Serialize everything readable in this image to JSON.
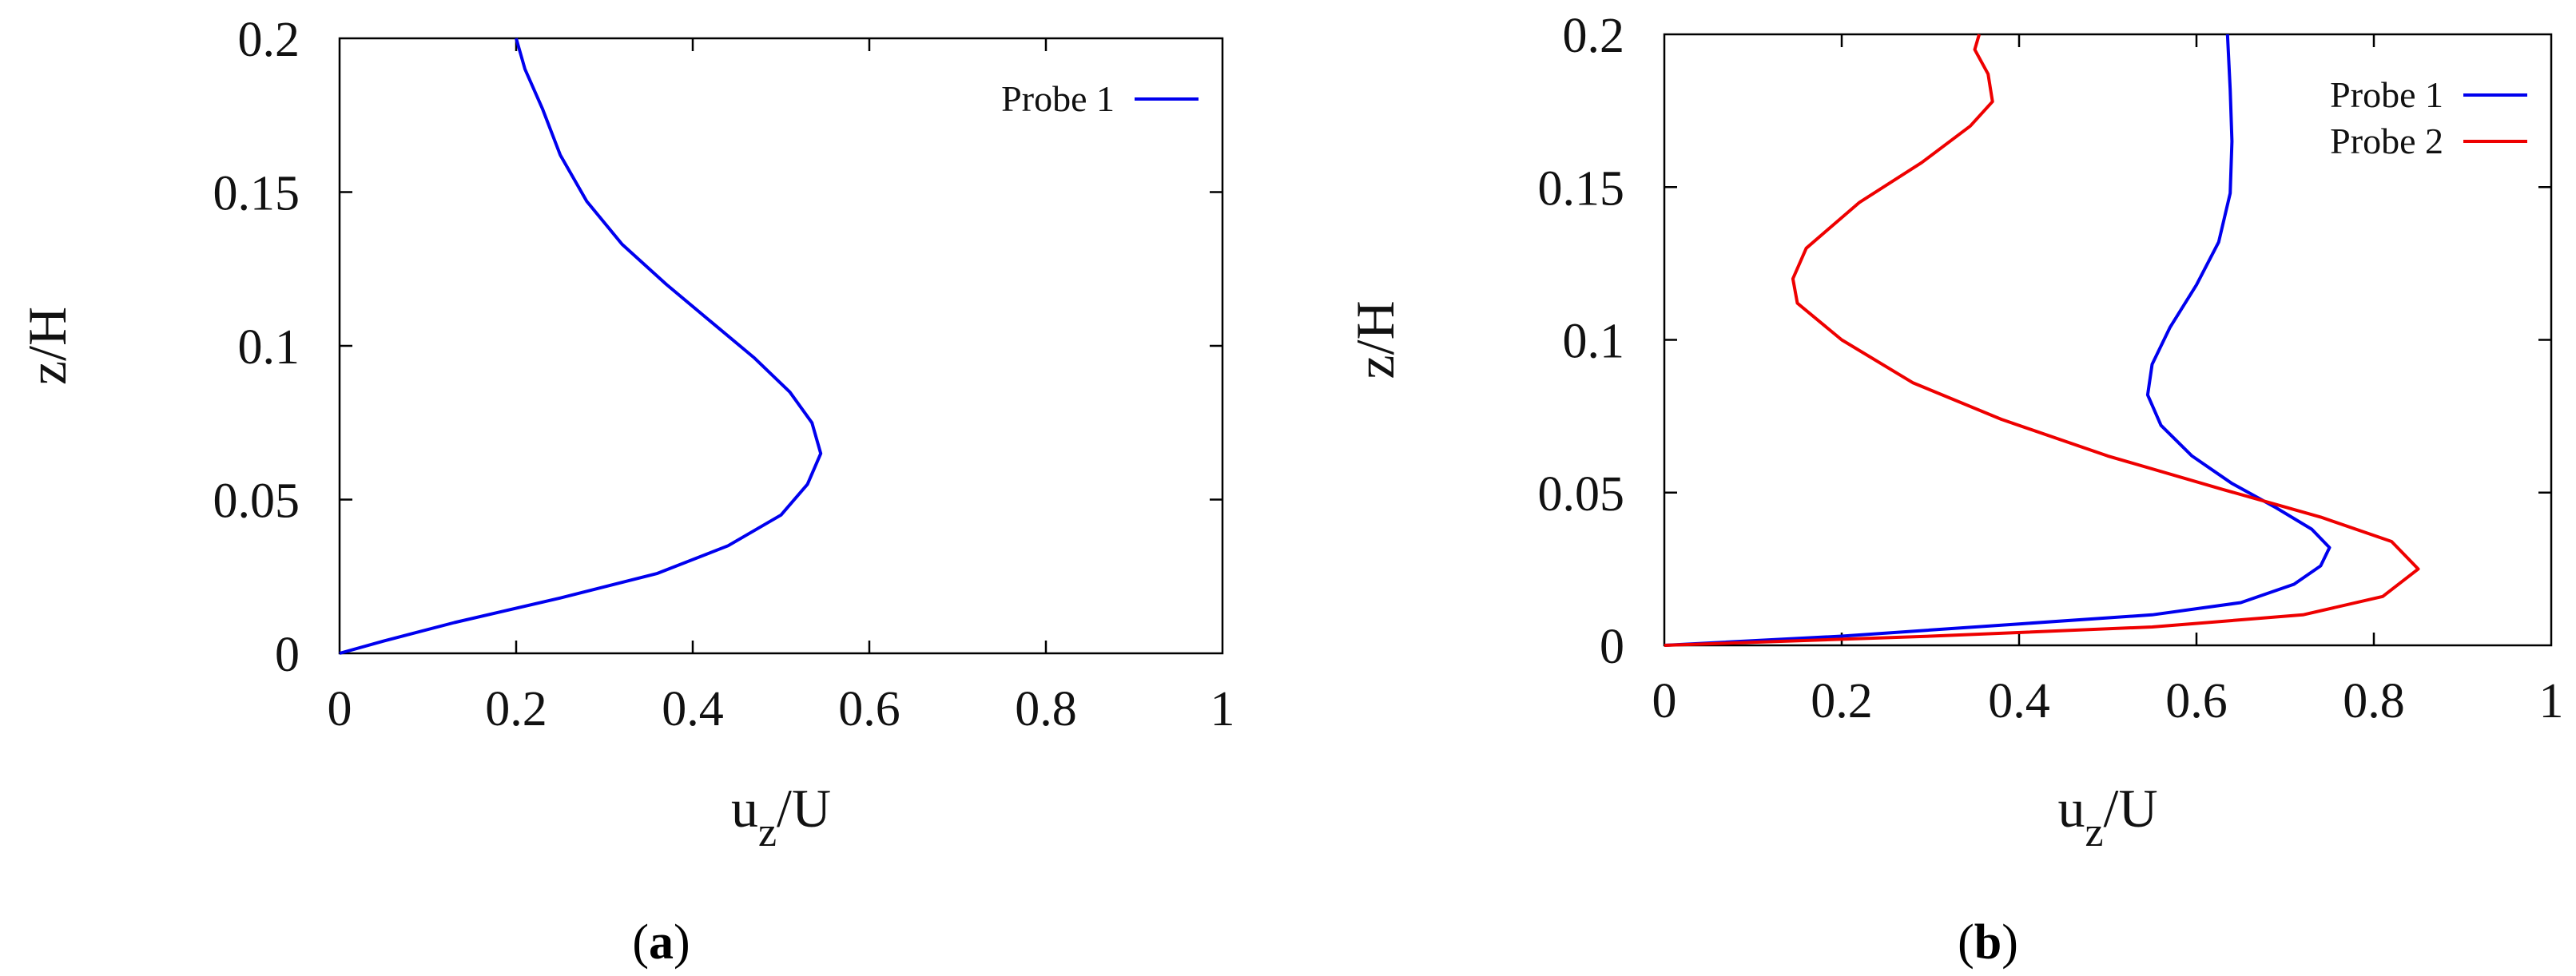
{
  "chart_data": [
    {
      "type": "line",
      "caption": "a",
      "xlabel": "u_z/U",
      "ylabel": "z/H",
      "xlim": [
        0,
        1
      ],
      "ylim": [
        0,
        0.2
      ],
      "x_ticks": [
        "0",
        "0.2",
        "0.4",
        "0.6",
        "0.8",
        "1"
      ],
      "y_ticks": [
        "0",
        "0.05",
        "0.1",
        "0.15",
        "0.2"
      ],
      "legend_position": "top-right",
      "series": [
        {
          "name": "Probe 1",
          "color": "#0000ee",
          "points": [
            [
              0.0,
              0.0
            ],
            [
              0.05,
              0.004
            ],
            [
              0.13,
              0.01
            ],
            [
              0.25,
              0.018
            ],
            [
              0.36,
              0.026
            ],
            [
              0.44,
              0.035
            ],
            [
              0.5,
              0.045
            ],
            [
              0.53,
              0.055
            ],
            [
              0.545,
              0.065
            ],
            [
              0.535,
              0.075
            ],
            [
              0.51,
              0.085
            ],
            [
              0.47,
              0.096
            ],
            [
              0.42,
              0.108
            ],
            [
              0.37,
              0.12
            ],
            [
              0.32,
              0.133
            ],
            [
              0.28,
              0.147
            ],
            [
              0.25,
              0.162
            ],
            [
              0.23,
              0.177
            ],
            [
              0.21,
              0.19
            ],
            [
              0.2,
              0.2
            ]
          ]
        }
      ]
    },
    {
      "type": "line",
      "caption": "b",
      "xlabel": "u_z/U",
      "ylabel": "z/H",
      "xlim": [
        0,
        1
      ],
      "ylim": [
        0,
        0.2
      ],
      "x_ticks": [
        "0",
        "0.2",
        "0.4",
        "0.6",
        "0.8",
        "1"
      ],
      "y_ticks": [
        "0",
        "0.05",
        "0.1",
        "0.15",
        "0.2"
      ],
      "legend_position": "top-right",
      "series": [
        {
          "name": "Probe 1",
          "color": "#0000ee",
          "points": [
            [
              0.0,
              0.0
            ],
            [
              0.2,
              0.003
            ],
            [
              0.4,
              0.007
            ],
            [
              0.55,
              0.01
            ],
            [
              0.65,
              0.014
            ],
            [
              0.71,
              0.02
            ],
            [
              0.74,
              0.026
            ],
            [
              0.75,
              0.032
            ],
            [
              0.73,
              0.038
            ],
            [
              0.69,
              0.045
            ],
            [
              0.64,
              0.053
            ],
            [
              0.595,
              0.062
            ],
            [
              0.56,
              0.072
            ],
            [
              0.545,
              0.082
            ],
            [
              0.55,
              0.092
            ],
            [
              0.57,
              0.104
            ],
            [
              0.6,
              0.118
            ],
            [
              0.625,
              0.132
            ],
            [
              0.638,
              0.148
            ],
            [
              0.64,
              0.165
            ],
            [
              0.638,
              0.182
            ],
            [
              0.635,
              0.2
            ]
          ]
        },
        {
          "name": "Probe 2",
          "color": "#ee0000",
          "points": [
            [
              0.0,
              0.0
            ],
            [
              0.3,
              0.003
            ],
            [
              0.55,
              0.006
            ],
            [
              0.72,
              0.01
            ],
            [
              0.81,
              0.016
            ],
            [
              0.85,
              0.025
            ],
            [
              0.82,
              0.034
            ],
            [
              0.74,
              0.042
            ],
            [
              0.63,
              0.051
            ],
            [
              0.5,
              0.062
            ],
            [
              0.38,
              0.074
            ],
            [
              0.28,
              0.086
            ],
            [
              0.2,
              0.1
            ],
            [
              0.15,
              0.112
            ],
            [
              0.145,
              0.12
            ],
            [
              0.16,
              0.13
            ],
            [
              0.22,
              0.145
            ],
            [
              0.29,
              0.158
            ],
            [
              0.345,
              0.17
            ],
            [
              0.37,
              0.178
            ],
            [
              0.365,
              0.187
            ],
            [
              0.35,
              0.195
            ],
            [
              0.355,
              0.2
            ]
          ]
        }
      ]
    }
  ]
}
